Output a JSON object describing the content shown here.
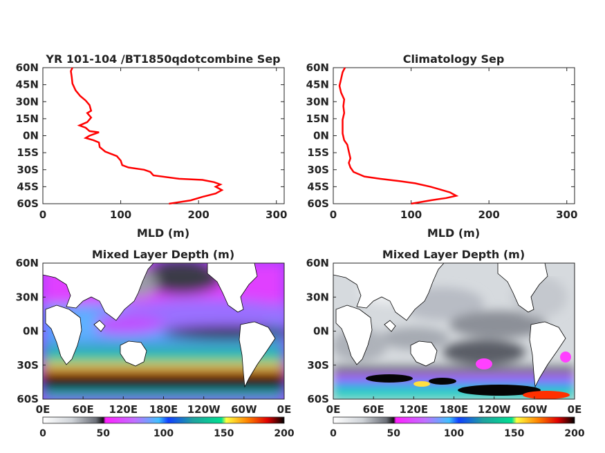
{
  "chart_data": [
    {
      "type": "line",
      "title": "YR 101-104 /BT1850qdotcombine Sep",
      "xlabel": "MLD (m)",
      "ylabel": "",
      "xlim": [
        0,
        310
      ],
      "ylim": [
        -60,
        60
      ],
      "xticks": [
        "0",
        "100",
        "200",
        "300"
      ],
      "yticks": [
        "60N",
        "45N",
        "30N",
        "15N",
        "0N",
        "15S",
        "30S",
        "45S",
        "60S"
      ],
      "color": "#ff0000",
      "grid": false,
      "series": [
        {
          "points": [
            [
              38,
              60
            ],
            [
              36,
              57
            ],
            [
              37,
              52
            ],
            [
              38,
              46
            ],
            [
              42,
              40
            ],
            [
              48,
              35
            ],
            [
              55,
              31
            ],
            [
              60,
              27
            ],
            [
              62,
              22
            ],
            [
              57,
              20
            ],
            [
              62,
              16
            ],
            [
              57,
              12
            ],
            [
              47,
              9
            ],
            [
              55,
              7
            ],
            [
              60,
              4
            ],
            [
              72,
              3
            ],
            [
              60,
              0
            ],
            [
              55,
              -2
            ],
            [
              65,
              -4
            ],
            [
              72,
              -6
            ],
            [
              73,
              -10
            ],
            [
              80,
              -14
            ],
            [
              95,
              -18
            ],
            [
              100,
              -22
            ],
            [
              102,
              -26
            ],
            [
              110,
              -28
            ],
            [
              130,
              -30
            ],
            [
              138,
              -32
            ],
            [
              142,
              -35
            ],
            [
              175,
              -38
            ],
            [
              205,
              -39
            ],
            [
              220,
              -41
            ],
            [
              228,
              -43
            ],
            [
              222,
              -45
            ],
            [
              230,
              -48
            ],
            [
              222,
              -51
            ],
            [
              205,
              -54
            ],
            [
              190,
              -57
            ],
            [
              162,
              -60
            ]
          ]
        }
      ]
    },
    {
      "type": "line",
      "title": "Climatology Sep",
      "xlabel": "MLD (m)",
      "ylabel": "",
      "xlim": [
        0,
        310
      ],
      "ylim": [
        -60,
        60
      ],
      "xticks": [
        "0",
        "100",
        "200",
        "300"
      ],
      "yticks": [
        "60N",
        "45N",
        "30N",
        "15N",
        "0N",
        "15S",
        "30S",
        "45S",
        "60S"
      ],
      "color": "#ff0000",
      "grid": false,
      "series": [
        {
          "points": [
            [
              15,
              60
            ],
            [
              12,
              56
            ],
            [
              10,
              50
            ],
            [
              8,
              44
            ],
            [
              10,
              38
            ],
            [
              14,
              32
            ],
            [
              13,
              26
            ],
            [
              14,
              20
            ],
            [
              12,
              14
            ],
            [
              12,
              8
            ],
            [
              12,
              2
            ],
            [
              14,
              -4
            ],
            [
              18,
              -8
            ],
            [
              20,
              -14
            ],
            [
              22,
              -20
            ],
            [
              20,
              -24
            ],
            [
              22,
              -28
            ],
            [
              26,
              -32
            ],
            [
              40,
              -36
            ],
            [
              60,
              -38
            ],
            [
              85,
              -40
            ],
            [
              105,
              -42
            ],
            [
              125,
              -45
            ],
            [
              140,
              -48
            ],
            [
              150,
              -50
            ],
            [
              158,
              -53
            ],
            [
              145,
              -55
            ],
            [
              125,
              -57
            ],
            [
              100,
              -60
            ]
          ]
        }
      ]
    },
    {
      "type": "heatmap",
      "title": "Mixed Layer Depth (m)",
      "xlabel": "",
      "ylabel": "",
      "xticks": [
        "0E",
        "60E",
        "120E",
        "180E",
        "120W",
        "60W",
        "0E"
      ],
      "yticks": [
        "60N",
        "30N",
        "0N",
        "30S",
        "60S"
      ],
      "xlim": [
        0,
        360
      ],
      "ylim": [
        -60,
        60
      ],
      "colorbar": {
        "ticks": [
          "0",
          "50",
          "100",
          "150",
          "200"
        ],
        "range": [
          0,
          200
        ]
      }
    },
    {
      "type": "heatmap",
      "title": "Mixed Layer Depth (m)",
      "xlabel": "",
      "ylabel": "",
      "xticks": [
        "0E",
        "60E",
        "120E",
        "180E",
        "120W",
        "60W",
        "0E"
      ],
      "yticks": [
        "60N",
        "30N",
        "0N",
        "30S",
        "60S"
      ],
      "xlim": [
        0,
        360
      ],
      "ylim": [
        -60,
        60
      ],
      "colorbar": {
        "ticks": [
          "0",
          "50",
          "100",
          "150",
          "200"
        ],
        "range": [
          0,
          200
        ]
      }
    }
  ]
}
